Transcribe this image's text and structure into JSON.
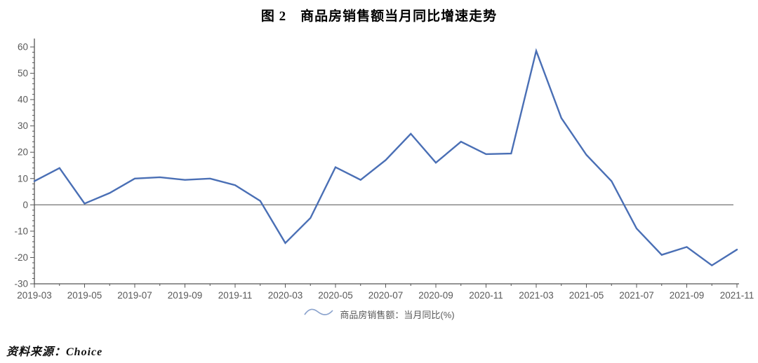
{
  "title": "图 2　商品房销售额当月同比增速走势",
  "source": "资料来源：Choice",
  "legend": {
    "icon": "wave-line-icon",
    "label": "商品房销售额：当月同比(%)"
  },
  "colors": {
    "line": "#4a6fb5",
    "legend_icon": "#8ba3cd",
    "axis": "#555555",
    "zero_line": "#7f7f7f",
    "tick_label": "#595959",
    "title": "#000000"
  },
  "chart_data": {
    "type": "line",
    "title": "图 2　商品房销售额当月同比增速走势",
    "xlabel": "",
    "ylabel": "",
    "x": [
      "2019-03",
      "2019-04",
      "2019-05",
      "2019-06",
      "2019-07",
      "2019-08",
      "2019-09",
      "2019-10",
      "2019-11",
      "2019-12",
      "2020-03",
      "2020-04",
      "2020-05",
      "2020-06",
      "2020-07",
      "2020-08",
      "2020-09",
      "2020-10",
      "2020-11",
      "2020-12",
      "2021-03",
      "2021-04",
      "2021-05",
      "2021-06",
      "2021-07",
      "2021-08",
      "2021-09",
      "2021-10",
      "2021-11"
    ],
    "series": [
      {
        "name": "商品房销售额：当月同比(%)",
        "values": [
          9,
          14,
          0.5,
          4.5,
          10,
          10.5,
          9.5,
          10,
          7.5,
          1.5,
          -14.5,
          -5,
          14.3,
          9.5,
          17,
          27,
          16,
          24,
          19.3,
          19.5,
          58.5,
          33,
          19,
          9,
          -9,
          -19,
          -16,
          -23,
          -17
        ]
      }
    ],
    "x_tick_labels": [
      "2019-03",
      "2019-05",
      "2019-07",
      "2019-09",
      "2019-11",
      "2020-03",
      "2020-05",
      "2020-07",
      "2020-09",
      "2020-11",
      "2021-03",
      "2021-05",
      "2021-07",
      "2021-09",
      "2021-11"
    ],
    "x_label_every": 2,
    "ylim": [
      -30,
      60
    ],
    "ytick_step": 10,
    "y_minor_step": 2,
    "yticks": [
      -30,
      -20,
      -10,
      0,
      10,
      20,
      30,
      40,
      50,
      60
    ],
    "grid": false,
    "zero_line": true,
    "legend_position": "bottom-center"
  }
}
